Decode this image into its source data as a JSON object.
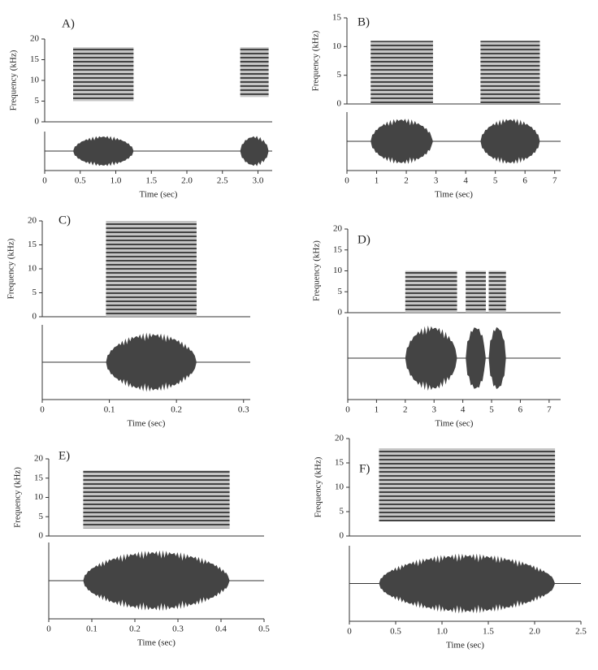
{
  "chart_data": [
    {
      "type": "spectrogram",
      "label": "A)",
      "ylabel": "Frequency (kHz)",
      "xlabel": "Time (sec)",
      "xlim": [
        0,
        3.2
      ],
      "xticks": [
        0,
        0.5,
        {
          "value": 1,
          "label": "1.0"
        },
        1.5,
        {
          "value": 2,
          "label": "2.0"
        },
        2.5,
        {
          "value": 3,
          "label": "3.0"
        }
      ],
      "ylim": [
        0,
        20
      ],
      "yticks": [
        0,
        5,
        10,
        15,
        20
      ],
      "color": "#333",
      "segments": [
        {
          "start": 0.4,
          "end": 1.25,
          "low": 5,
          "high": 18
        },
        {
          "start": 2.75,
          "end": 3.15,
          "low": 6,
          "high": 18
        }
      ]
    },
    {
      "type": "spectrogram",
      "label": "B)",
      "ylabel": "Frequency (kHz)",
      "xlabel": "Time (sec)",
      "xlim": [
        0,
        7.2
      ],
      "xticks": [
        0,
        1,
        2,
        3,
        4,
        5,
        6,
        7
      ],
      "ylim": [
        0,
        15
      ],
      "yticks": [
        0,
        5,
        10,
        15
      ],
      "color": "#333",
      "segments": [
        {
          "start": 0.8,
          "end": 2.9,
          "low": 0,
          "high": 11
        },
        {
          "start": 4.5,
          "end": 6.5,
          "low": 0,
          "high": 11
        }
      ]
    },
    {
      "type": "spectrogram",
      "label": "C)",
      "ylabel": "Frequency (kHz)",
      "xlabel": "Time (sec)",
      "xlim": [
        0,
        0.31
      ],
      "xticks": [
        0,
        0.1,
        0.2,
        0.3
      ],
      "ylim": [
        0,
        20
      ],
      "yticks": [
        0,
        5,
        10,
        15,
        20
      ],
      "color": "#333",
      "segments": [
        {
          "start": 0.095,
          "end": 0.23,
          "low": 0,
          "high": 20
        }
      ]
    },
    {
      "type": "spectrogram",
      "label": "D)",
      "ylabel": "Frequency (kHz)",
      "xlabel": "Time (sec)",
      "xlim": [
        0,
        7.4
      ],
      "xticks": [
        0,
        1,
        2,
        3,
        4,
        5,
        6,
        7
      ],
      "ylim": [
        0,
        20
      ],
      "yticks": [
        0,
        5,
        10,
        15,
        20
      ],
      "color": "#333",
      "segments": [
        {
          "start": 2,
          "end": 3.8,
          "low": 0,
          "high": 10
        },
        {
          "start": 4.1,
          "end": 4.8,
          "low": 0,
          "high": 10
        },
        {
          "start": 4.9,
          "end": 5.5,
          "low": 0,
          "high": 10
        }
      ]
    },
    {
      "type": "spectrogram",
      "label": "E)",
      "ylabel": "Frequency (kHz)",
      "xlabel": "Time (sec)",
      "xlim": [
        0,
        0.5
      ],
      "xticks": [
        0,
        0.1,
        0.2,
        0.3,
        0.4,
        0.5
      ],
      "ylim": [
        0,
        20
      ],
      "yticks": [
        0,
        5,
        10,
        15,
        20
      ],
      "color": "#333",
      "segments": [
        {
          "start": 0.08,
          "end": 0.42,
          "low": 2,
          "high": 17
        }
      ]
    },
    {
      "type": "spectrogram",
      "label": "F)",
      "ylabel": "Frequency (kHz)",
      "xlabel": "Time (sec)",
      "xlim": [
        0,
        2.5
      ],
      "xticks": [
        0,
        0.5,
        {
          "value": 1,
          "label": "1.0"
        },
        1.5,
        {
          "value": 2,
          "label": "2.0"
        },
        2.5
      ],
      "ylim": [
        0,
        20
      ],
      "yticks": [
        0,
        5,
        10,
        15,
        20
      ],
      "color": "#333",
      "segments": [
        {
          "start": 0.32,
          "end": 2.22,
          "low": 3,
          "high": 18
        }
      ]
    }
  ]
}
